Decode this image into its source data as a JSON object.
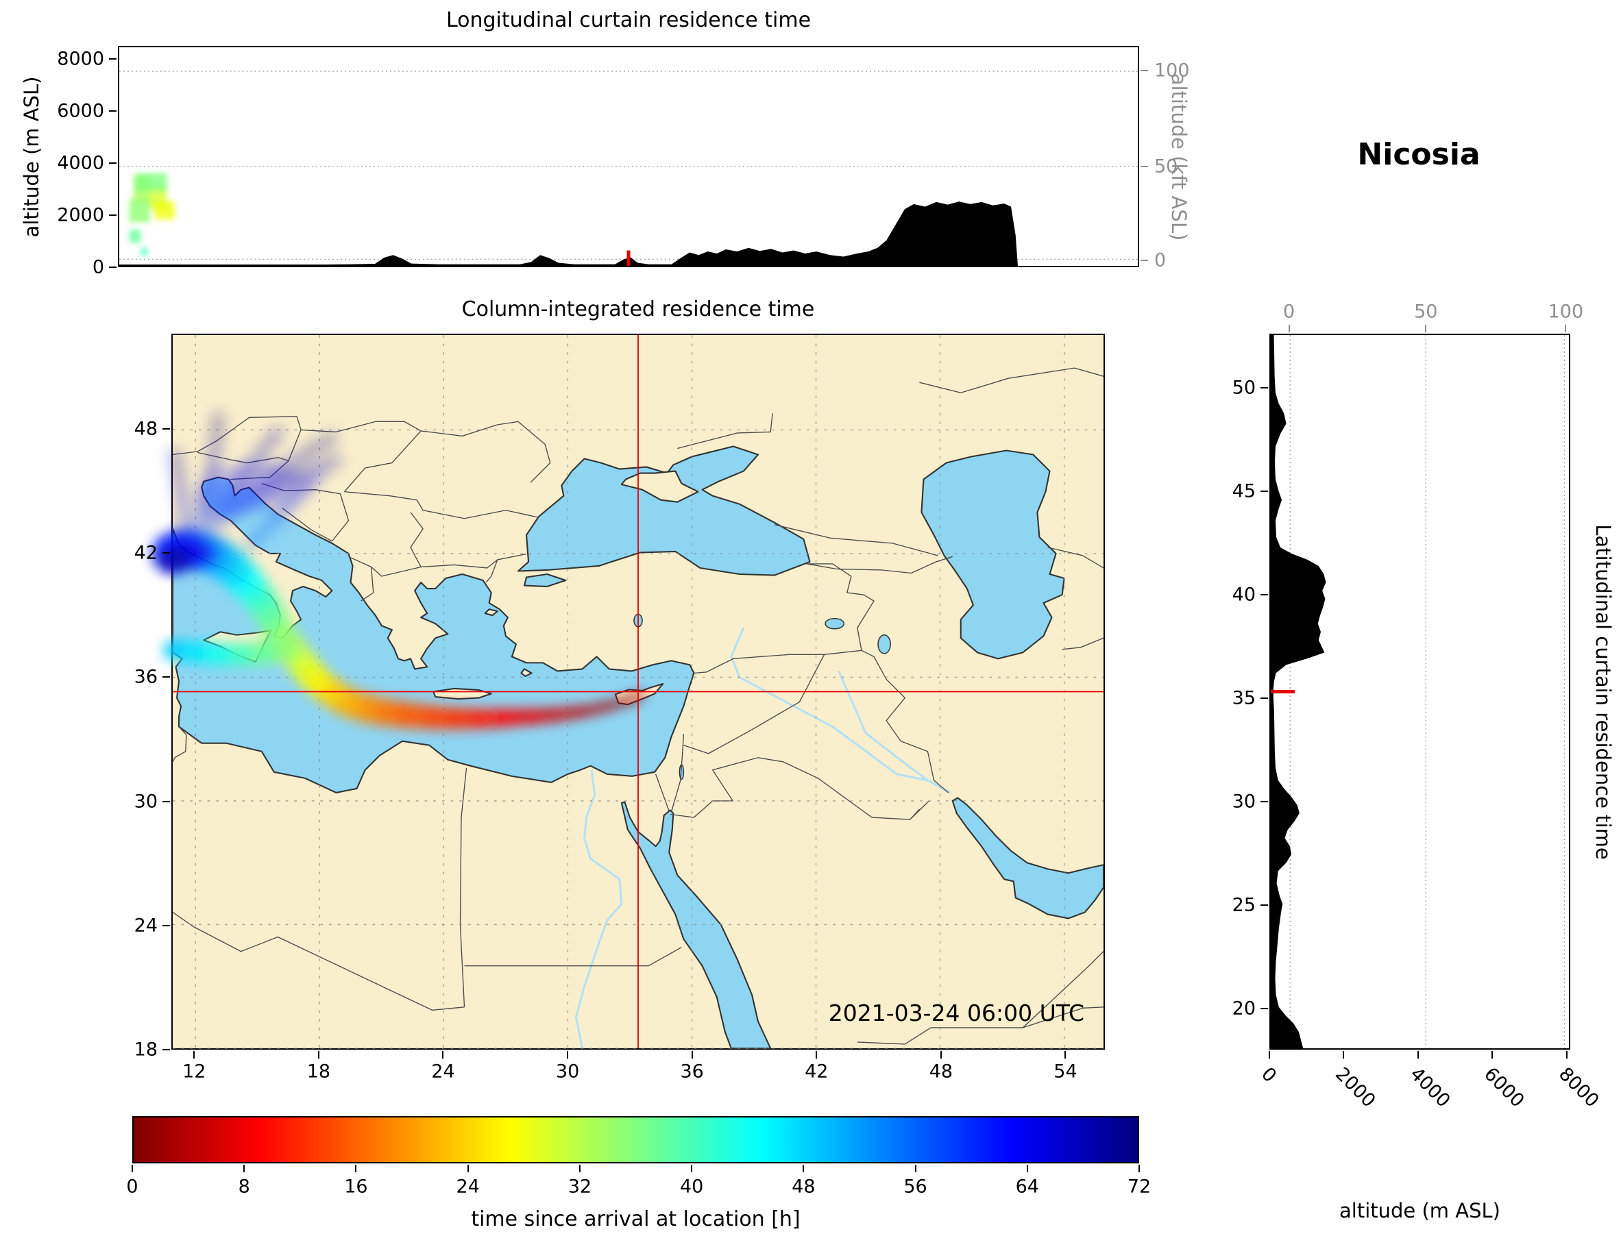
{
  "title": "Nicosia",
  "top_panel": {
    "title": "Longitudinal curtain residence time",
    "ylabel_left": "altitude (m ASL)",
    "ylabel_right": "altitude (kft ASL)",
    "yticks_left": [
      "0",
      "2000",
      "4000",
      "6000",
      "8000"
    ],
    "yticks_right": [
      "0",
      "50",
      "100"
    ]
  },
  "map_panel": {
    "title": "Column-integrated residence time",
    "timestamp": "2021-03-24 06:00 UTC",
    "xticks": [
      "12",
      "18",
      "24",
      "30",
      "36",
      "42",
      "48",
      "54"
    ],
    "yticks": [
      "18",
      "24",
      "30",
      "36",
      "42",
      "48"
    ]
  },
  "right_panel": {
    "side_label": "Latitudinal curtain residence time",
    "xlabel": "altitude (m ASL)",
    "xticks": [
      "0",
      "2000",
      "4000",
      "6000",
      "8000"
    ],
    "xticks_top": [
      "0",
      "50",
      "100"
    ],
    "yticks": [
      "20",
      "25",
      "30",
      "35",
      "40",
      "45",
      "50"
    ]
  },
  "colorbar": {
    "label": "time since arrival at location [h]",
    "ticks": [
      "0",
      "8",
      "16",
      "24",
      "32",
      "40",
      "48",
      "56",
      "64",
      "72"
    ],
    "min": 0,
    "max": 72,
    "stops": [
      [
        0.0,
        "#7f0000"
      ],
      [
        0.125,
        "#ff0000"
      ],
      [
        0.375,
        "#ffff00"
      ],
      [
        0.625,
        "#00ffff"
      ],
      [
        0.875,
        "#0000ff"
      ],
      [
        1.0,
        "#00007f"
      ]
    ]
  },
  "colors": {
    "land": "#f9efcc",
    "sea": "#8ed5f2",
    "coast": "#333333",
    "border": "#4a4a4a",
    "grid": "#8a8a8a",
    "crosshair": "#e60000",
    "terrain": "#000000",
    "kft_axis": "#8f8f8f"
  },
  "chart_data": {
    "type": "heatmap",
    "title": "Column-integrated residence time",
    "station": "Nicosia",
    "valid_time": "2021-03-24 06:00 UTC",
    "colorbar_label": "time since arrival at location [h]",
    "time_range_h": [
      0,
      72
    ],
    "receptor": {
      "lon": 33.4,
      "lat": 35.3
    },
    "map_extent": {
      "lon": [
        10.9,
        55.9
      ],
      "lat": [
        18.0,
        52.6
      ]
    },
    "lon_ticks": [
      12,
      18,
      24,
      30,
      36,
      42,
      48,
      54
    ],
    "lat_ticks": [
      18,
      24,
      30,
      36,
      42,
      48
    ],
    "alt_ticks_m": [
      0,
      2000,
      4000,
      6000,
      8000
    ],
    "kft_ticks": [
      0,
      50,
      100
    ],
    "plume_track": [
      [
        33.6,
        35.15,
        0,
        0.3
      ],
      [
        33.0,
        34.9,
        1,
        0.35
      ],
      [
        32.0,
        34.6,
        2.5,
        0.4
      ],
      [
        30.8,
        34.35,
        4,
        0.5
      ],
      [
        29.6,
        34.2,
        5.5,
        0.6
      ],
      [
        28.4,
        34.1,
        7,
        0.7
      ],
      [
        27.2,
        34.05,
        8.5,
        0.8
      ],
      [
        26.0,
        34.0,
        10,
        0.9
      ],
      [
        24.8,
        34.0,
        11.5,
        1.0
      ],
      [
        23.6,
        34.05,
        13,
        1.1
      ],
      [
        22.4,
        34.15,
        14.5,
        1.2
      ],
      [
        21.2,
        34.3,
        16,
        1.3
      ],
      [
        20.2,
        34.5,
        18,
        1.35
      ],
      [
        19.3,
        34.8,
        20,
        1.4
      ],
      [
        18.5,
        35.3,
        22.5,
        1.4
      ],
      [
        17.8,
        35.9,
        25,
        1.4
      ],
      [
        17.2,
        36.6,
        27.5,
        1.4
      ],
      [
        16.7,
        37.3,
        30,
        1.4
      ],
      [
        16.2,
        38.0,
        32.5,
        1.4
      ],
      [
        15.8,
        38.7,
        35,
        1.45
      ],
      [
        15.4,
        39.4,
        37.5,
        1.5
      ],
      [
        14.9,
        40.1,
        40,
        1.55
      ],
      [
        14.4,
        40.7,
        43,
        1.6
      ],
      [
        13.8,
        41.3,
        46,
        1.7
      ],
      [
        13.1,
        41.8,
        49,
        1.8
      ],
      [
        12.4,
        42.1,
        52,
        1.9
      ],
      [
        11.7,
        42.2,
        56,
        2.0
      ],
      [
        11.1,
        42.1,
        60,
        2.0
      ],
      [
        10.9,
        42.0,
        62,
        2.0
      ]
    ],
    "plume_branch_west": [
      [
        16.4,
        37.4,
        33,
        1.2
      ],
      [
        15.4,
        37.2,
        36,
        1.15
      ],
      [
        14.3,
        37.1,
        39,
        1.1
      ],
      [
        13.2,
        37.1,
        42,
        1.05
      ],
      [
        12.1,
        37.2,
        45,
        1.0
      ],
      [
        11.1,
        37.3,
        48,
        0.95
      ],
      [
        10.9,
        37.3,
        49,
        0.9
      ]
    ],
    "plume_fan_alps": [
      [
        [
          12.6,
          43.2,
          56
        ],
        [
          13.3,
          44.5,
          60
        ],
        [
          14.3,
          45.8,
          64
        ],
        [
          15.2,
          46.9,
          68
        ],
        [
          16.0,
          47.9,
          71
        ]
      ],
      [
        [
          12.9,
          43.4,
          58
        ],
        [
          14.2,
          44.6,
          62
        ],
        [
          15.8,
          45.8,
          66
        ],
        [
          17.4,
          46.9,
          70
        ],
        [
          18.6,
          47.6,
          72
        ]
      ],
      [
        [
          12.2,
          43.3,
          58
        ],
        [
          12.5,
          44.7,
          62
        ],
        [
          12.8,
          46.1,
          66
        ],
        [
          13.0,
          47.5,
          70
        ],
        [
          13.1,
          48.6,
          72
        ]
      ],
      [
        [
          11.6,
          43.0,
          60
        ],
        [
          11.4,
          44.4,
          64
        ],
        [
          11.2,
          45.7,
          68
        ],
        [
          11.0,
          46.8,
          71
        ]
      ],
      [
        [
          13.3,
          43.6,
          58
        ],
        [
          15.0,
          44.8,
          63
        ],
        [
          16.8,
          45.7,
          67
        ],
        [
          18.8,
          46.5,
          71
        ]
      ],
      [
        [
          14.6,
          42.4,
          54
        ],
        [
          15.8,
          43.6,
          58
        ],
        [
          17.0,
          44.8,
          62
        ],
        [
          18.0,
          45.9,
          66
        ]
      ]
    ],
    "plume_cores": [
      [
        11.7,
        42.0,
        1.25,
        0.8,
        64
      ],
      [
        11.0,
        41.7,
        0.85,
        0.6,
        69
      ]
    ],
    "plume_diffuse_polygon": [
      [
        12.2,
        43.8
      ],
      [
        16.5,
        44.2
      ],
      [
        17.6,
        45.6
      ],
      [
        15.6,
        46.5
      ],
      [
        13.0,
        46.2
      ],
      [
        12.0,
        45.0
      ]
    ],
    "diffuse_h": 62,
    "curtain_lon": {
      "alt_max_m": 8500,
      "receptor_lon": 33.4,
      "terrain": [
        [
          10.9,
          50
        ],
        [
          20.0,
          50
        ],
        [
          21.0,
          60
        ],
        [
          22.2,
          80
        ],
        [
          22.6,
          320
        ],
        [
          23.0,
          420
        ],
        [
          23.4,
          280
        ],
        [
          23.8,
          90
        ],
        [
          25.0,
          60
        ],
        [
          28.6,
          60
        ],
        [
          29.1,
          150
        ],
        [
          29.5,
          420
        ],
        [
          29.9,
          300
        ],
        [
          30.3,
          120
        ],
        [
          31.0,
          60
        ],
        [
          32.8,
          60
        ],
        [
          33.2,
          260
        ],
        [
          33.5,
          330
        ],
        [
          33.8,
          120
        ],
        [
          34.3,
          60
        ],
        [
          35.3,
          60
        ],
        [
          35.7,
          300
        ],
        [
          36.1,
          520
        ],
        [
          36.5,
          420
        ],
        [
          36.9,
          560
        ],
        [
          37.3,
          480
        ],
        [
          37.7,
          640
        ],
        [
          38.2,
          560
        ],
        [
          38.7,
          700
        ],
        [
          39.2,
          580
        ],
        [
          39.7,
          660
        ],
        [
          40.2,
          520
        ],
        [
          40.7,
          600
        ],
        [
          41.2,
          480
        ],
        [
          41.7,
          560
        ],
        [
          42.3,
          420
        ],
        [
          42.9,
          360
        ],
        [
          43.5,
          480
        ],
        [
          44.0,
          560
        ],
        [
          44.4,
          700
        ],
        [
          44.8,
          1000
        ],
        [
          45.2,
          1600
        ],
        [
          45.6,
          2200
        ],
        [
          46.0,
          2400
        ],
        [
          46.5,
          2300
        ],
        [
          47.0,
          2480
        ],
        [
          47.5,
          2380
        ],
        [
          48.0,
          2500
        ],
        [
          48.5,
          2400
        ],
        [
          49.0,
          2480
        ],
        [
          49.5,
          2350
        ],
        [
          50.0,
          2420
        ],
        [
          50.3,
          2300
        ],
        [
          50.5,
          1200
        ],
        [
          50.6,
          0
        ]
      ],
      "cells": [
        [
          11.9,
          0.75,
          2500,
          1000,
          33
        ],
        [
          12.6,
          0.8,
          2200,
          900,
          30
        ],
        [
          11.8,
          0.9,
          1700,
          900,
          35
        ],
        [
          12.9,
          0.9,
          1800,
          700,
          28
        ],
        [
          12.3,
          1.4,
          2900,
          700,
          36
        ],
        [
          11.6,
          0.5,
          900,
          500,
          38
        ],
        [
          12.0,
          0.3,
          400,
          300,
          40
        ]
      ]
    },
    "curtain_lat": {
      "alt_max_m": 8100,
      "receptor_lat": 35.3,
      "terrain": [
        [
          18,
          880
        ],
        [
          18.4,
          820
        ],
        [
          18.8,
          760
        ],
        [
          19.2,
          620
        ],
        [
          19.6,
          400
        ],
        [
          20.0,
          220
        ],
        [
          20.6,
          140
        ],
        [
          21.4,
          120
        ],
        [
          22.2,
          140
        ],
        [
          23.0,
          180
        ],
        [
          23.8,
          220
        ],
        [
          24.6,
          280
        ],
        [
          25.0,
          320
        ],
        [
          25.4,
          240
        ],
        [
          26.0,
          160
        ],
        [
          26.6,
          200
        ],
        [
          27.0,
          420
        ],
        [
          27.4,
          560
        ],
        [
          27.8,
          520
        ],
        [
          28.2,
          380
        ],
        [
          28.6,
          460
        ],
        [
          29.0,
          640
        ],
        [
          29.4,
          780
        ],
        [
          29.8,
          720
        ],
        [
          30.2,
          560
        ],
        [
          30.6,
          360
        ],
        [
          31.0,
          200
        ],
        [
          31.6,
          130
        ],
        [
          32.4,
          110
        ],
        [
          33.4,
          100
        ],
        [
          34.4,
          90
        ],
        [
          35.0,
          70
        ],
        [
          35.4,
          70
        ],
        [
          35.8,
          90
        ],
        [
          36.2,
          140
        ],
        [
          36.6,
          420
        ],
        [
          36.9,
          980
        ],
        [
          37.2,
          1460
        ],
        [
          37.5,
          1380
        ],
        [
          37.8,
          1300
        ],
        [
          38.2,
          1360
        ],
        [
          38.6,
          1280
        ],
        [
          39.0,
          1340
        ],
        [
          39.4,
          1420
        ],
        [
          39.8,
          1480
        ],
        [
          40.2,
          1400
        ],
        [
          40.6,
          1500
        ],
        [
          41.0,
          1440
        ],
        [
          41.4,
          1300
        ],
        [
          41.7,
          1000
        ],
        [
          42.0,
          560
        ],
        [
          42.3,
          260
        ],
        [
          42.8,
          150
        ],
        [
          43.6,
          130
        ],
        [
          44.2,
          220
        ],
        [
          44.6,
          300
        ],
        [
          45.0,
          220
        ],
        [
          45.6,
          130
        ],
        [
          46.4,
          110
        ],
        [
          47.2,
          130
        ],
        [
          47.8,
          260
        ],
        [
          48.3,
          420
        ],
        [
          48.8,
          360
        ],
        [
          49.3,
          210
        ],
        [
          49.8,
          130
        ],
        [
          50.6,
          105
        ],
        [
          51.6,
          95
        ],
        [
          52.6,
          85
        ]
      ]
    }
  }
}
